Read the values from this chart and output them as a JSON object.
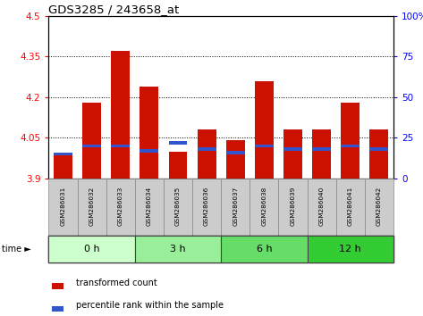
{
  "title": "GDS3285 / 243658_at",
  "samples": [
    "GSM286031",
    "GSM286032",
    "GSM286033",
    "GSM286034",
    "GSM286035",
    "GSM286036",
    "GSM286037",
    "GSM286038",
    "GSM286039",
    "GSM286040",
    "GSM286041",
    "GSM286042"
  ],
  "transformed_counts": [
    3.99,
    4.18,
    4.37,
    4.24,
    4.0,
    4.08,
    4.04,
    4.26,
    4.08,
    4.08,
    4.18,
    4.08
  ],
  "percentile_ranks": [
    15,
    20,
    20,
    17,
    22,
    18,
    16,
    20,
    18,
    18,
    20,
    18
  ],
  "ylim_left": [
    3.9,
    4.5
  ],
  "yticks_left": [
    3.9,
    4.05,
    4.2,
    4.35,
    4.5
  ],
  "ylim_right": [
    0,
    100
  ],
  "yticks_right": [
    0,
    25,
    50,
    75,
    100
  ],
  "bar_color_red": "#cc1100",
  "bar_color_blue": "#3355cc",
  "bar_width": 0.65,
  "groups": [
    {
      "label": "0 h",
      "samples": [
        0,
        1,
        2
      ],
      "color": "#ccffcc"
    },
    {
      "label": "3 h",
      "samples": [
        3,
        4,
        5
      ],
      "color": "#99ee99"
    },
    {
      "label": "6 h",
      "samples": [
        6,
        7,
        8
      ],
      "color": "#66dd66"
    },
    {
      "label": "12 h",
      "samples": [
        9,
        10,
        11
      ],
      "color": "#33cc33"
    }
  ],
  "sample_bg_color": "#cccccc",
  "legend_red_label": "transformed count",
  "legend_blue_label": "percentile rank within the sample"
}
